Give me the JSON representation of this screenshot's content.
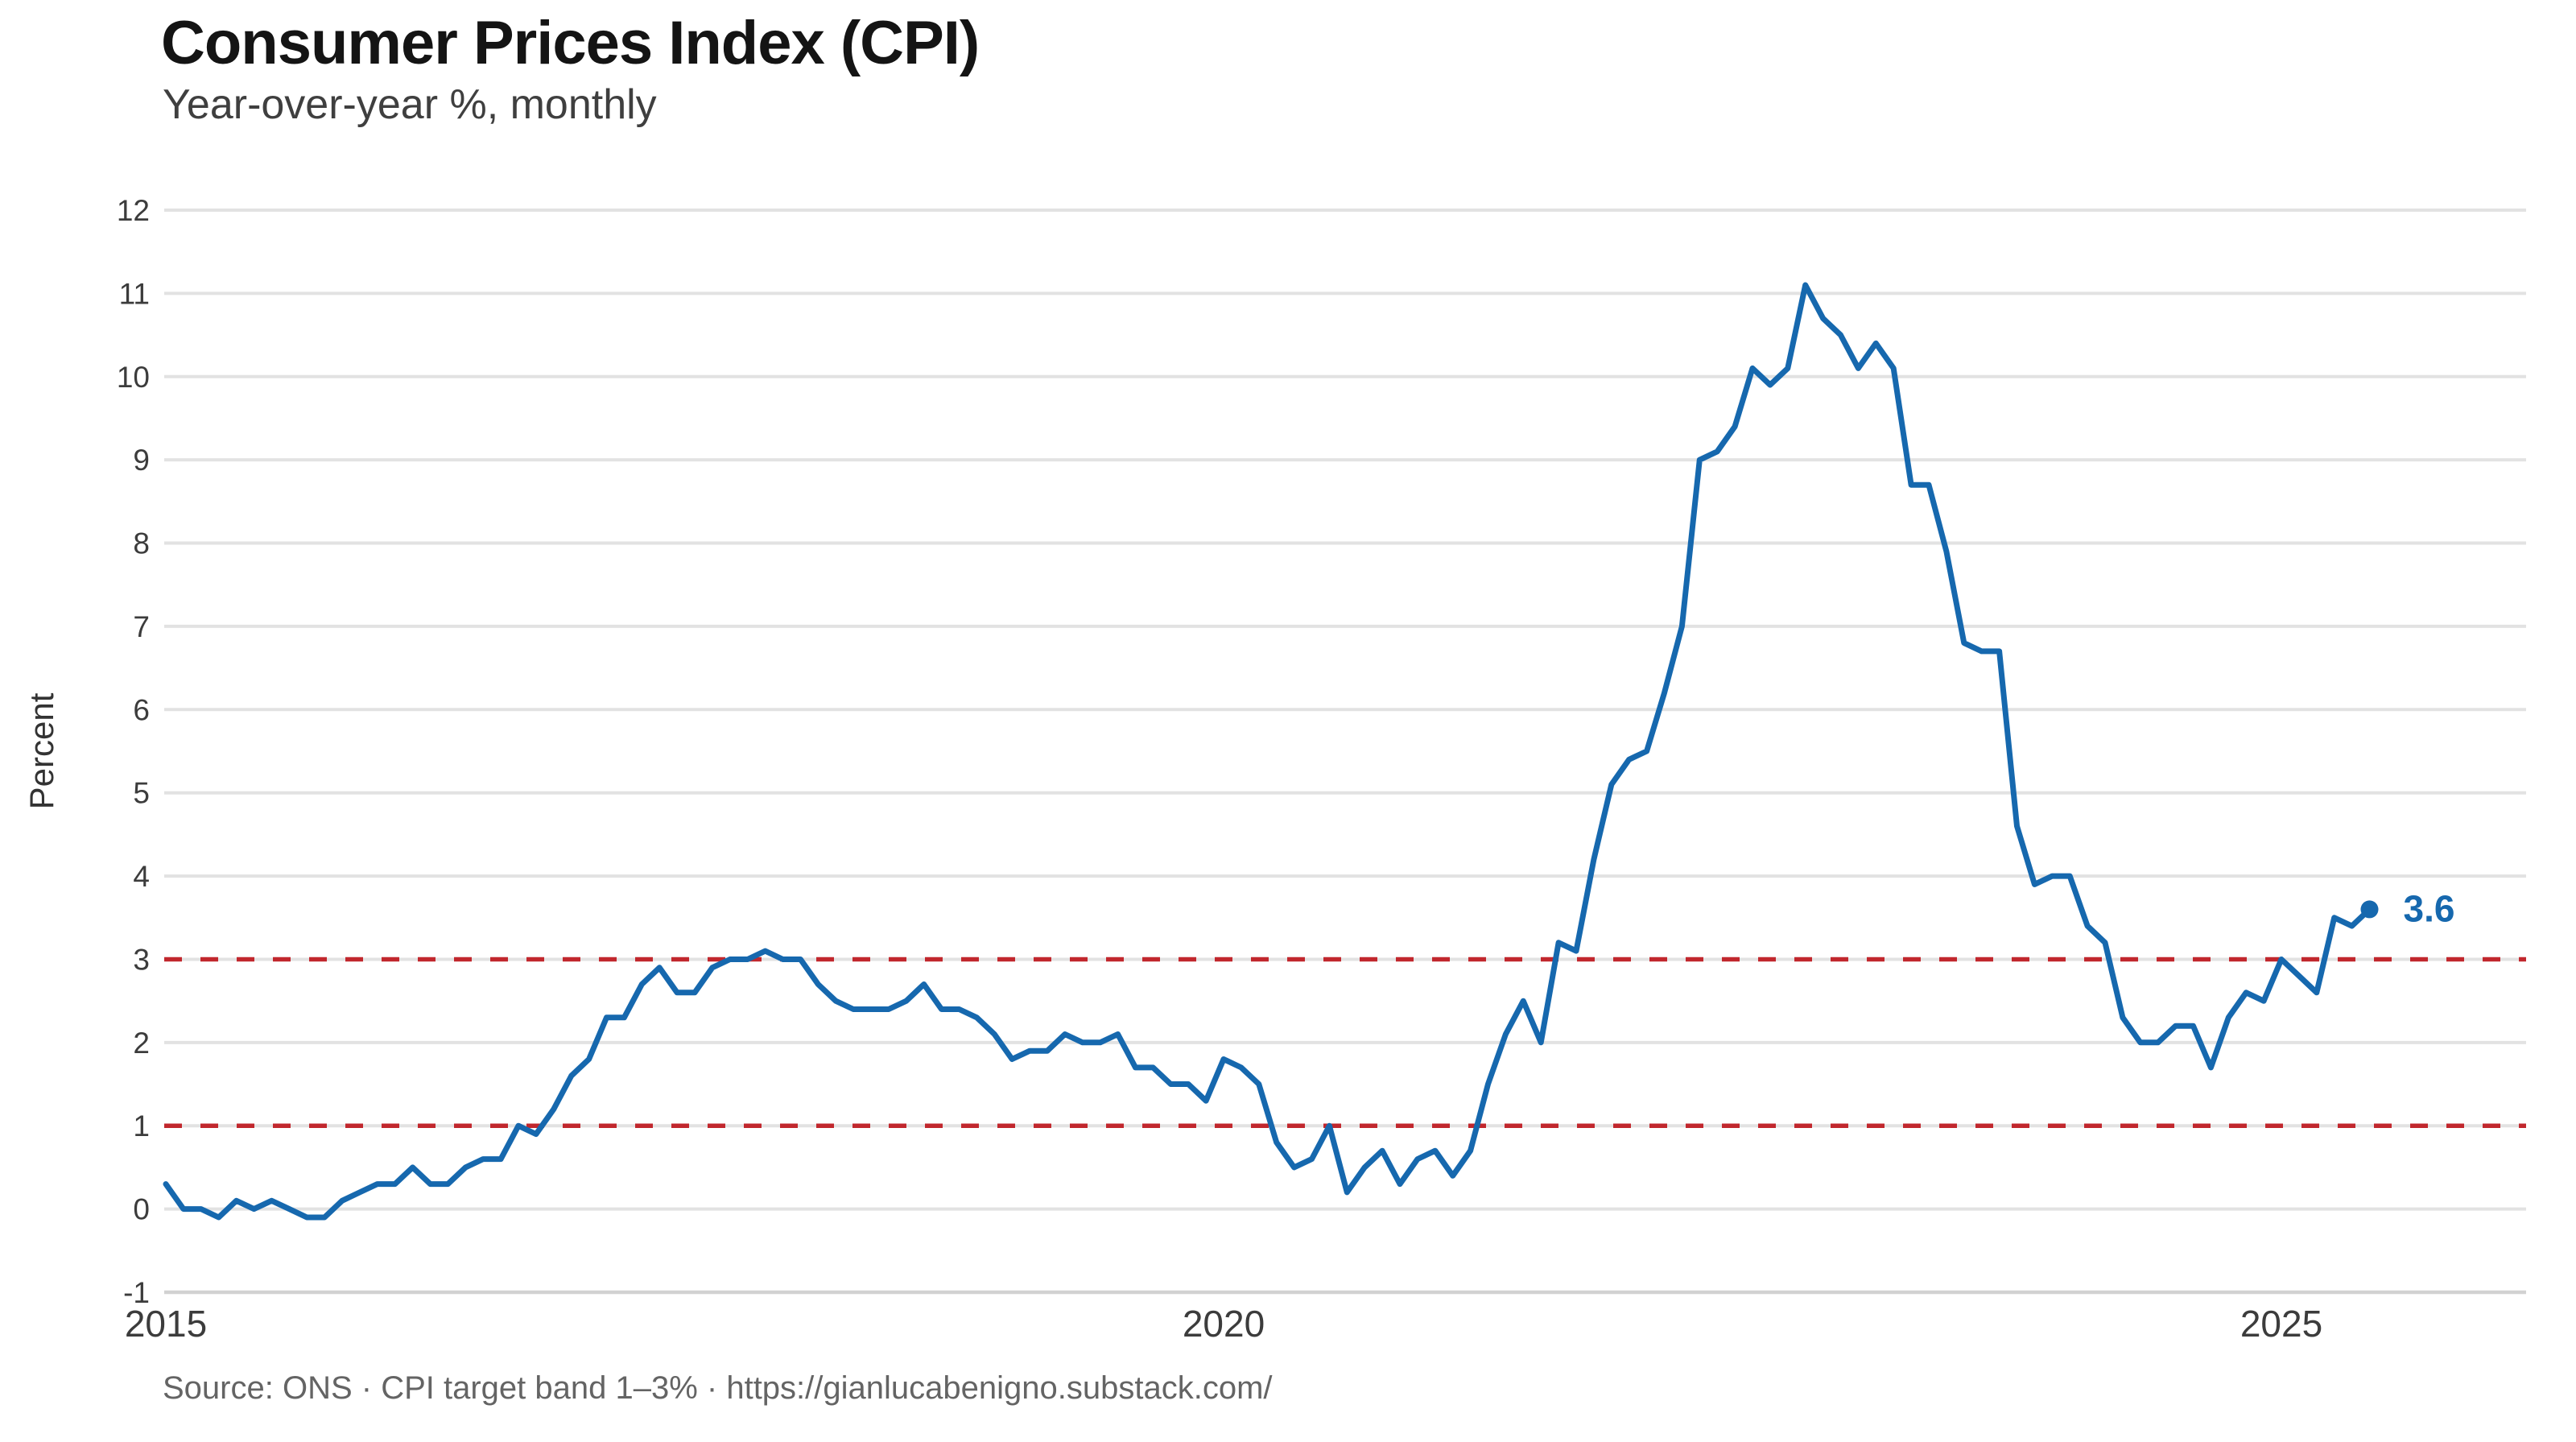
{
  "page": {
    "title": "Consumer Prices Index (CPI)",
    "subtitle": "Year-over-year %, monthly",
    "source_note": "Source: ONS  ·  CPI target band 1–3%  ·  https://gianlucabenigno.substack.com/"
  },
  "colors": {
    "line": "#1668ae",
    "target_band": "#c1272d",
    "grid": "#e2e2e2",
    "axis_line": "#d2d2d2",
    "tick_text": "#3c3c3c",
    "title_text": "#141414",
    "subtitle_text": "#3f3f3f",
    "footer_text": "#646464"
  },
  "chart_data": {
    "type": "line",
    "title": "Consumer Prices Index (CPI)",
    "subtitle": "Year-over-year %, monthly",
    "xlabel": "",
    "ylabel": "Percent",
    "x_start": "2015-01",
    "x_end": "2025-06",
    "frequency": "monthly",
    "ylim": [
      -1,
      12
    ],
    "yticks": [
      -1,
      0,
      1,
      2,
      3,
      4,
      5,
      6,
      7,
      8,
      9,
      10,
      11,
      12
    ],
    "xticks": [
      2015,
      2020,
      2025
    ],
    "grid": "horizontal",
    "legend": "none",
    "target_band": {
      "lower": 1,
      "upper": 3,
      "line_style": "dashed",
      "label": "CPI target band 1–3%"
    },
    "last_point_label": "3.6",
    "series": [
      {
        "name": "CPI year-over-year %",
        "values": [
          0.3,
          0.0,
          0.0,
          -0.1,
          0.1,
          0.0,
          0.1,
          0.0,
          -0.1,
          -0.1,
          0.1,
          0.2,
          0.3,
          0.3,
          0.5,
          0.3,
          0.3,
          0.5,
          0.6,
          0.6,
          1.0,
          0.9,
          1.2,
          1.6,
          1.8,
          2.3,
          2.3,
          2.7,
          2.9,
          2.6,
          2.6,
          2.9,
          3.0,
          3.0,
          3.1,
          3.0,
          3.0,
          2.7,
          2.5,
          2.4,
          2.4,
          2.4,
          2.5,
          2.7,
          2.4,
          2.4,
          2.3,
          2.1,
          1.8,
          1.9,
          1.9,
          2.1,
          2.0,
          2.0,
          2.1,
          1.7,
          1.7,
          1.5,
          1.5,
          1.3,
          1.8,
          1.7,
          1.5,
          0.8,
          0.5,
          0.6,
          1.0,
          0.2,
          0.5,
          0.7,
          0.3,
          0.6,
          0.7,
          0.4,
          0.7,
          1.5,
          2.1,
          2.5,
          2.0,
          3.2,
          3.1,
          4.2,
          5.1,
          5.4,
          5.5,
          6.2,
          7.0,
          9.0,
          9.1,
          9.4,
          10.1,
          9.9,
          10.1,
          11.1,
          10.7,
          10.5,
          10.1,
          10.4,
          10.1,
          8.7,
          8.7,
          7.9,
          6.8,
          6.7,
          6.7,
          4.6,
          3.9,
          4.0,
          4.0,
          3.4,
          3.2,
          2.3,
          2.0,
          2.0,
          2.2,
          2.2,
          1.7,
          2.3,
          2.6,
          2.5,
          3.0,
          2.8,
          2.6,
          3.5,
          3.4,
          3.6
        ]
      }
    ]
  }
}
